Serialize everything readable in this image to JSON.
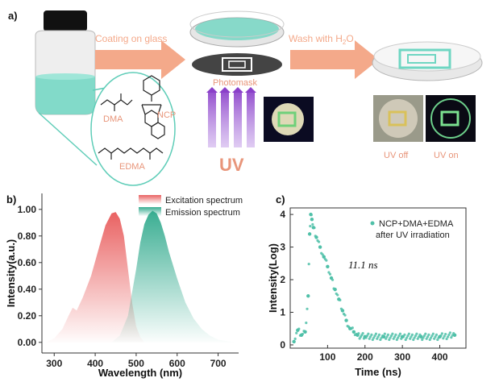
{
  "panel_a": {
    "label": "a)",
    "step1_text": "Coating on glass",
    "step2_text": "Wash with H",
    "step2_sub": "2",
    "step2_tail": "O",
    "photomask_label": "Photomask",
    "uv_label": "UV",
    "uv_off_label": "UV off",
    "uv_on_label": "UV on",
    "molecules": {
      "dma": "DMA",
      "ncp": "NCP",
      "edma": "EDMA"
    },
    "colors": {
      "arrow": "#f4a98a",
      "teal": "#5fcdb8",
      "uv": "#8a3fc9",
      "label": "#e8957a"
    }
  },
  "panel_b": {
    "label": "b)",
    "colors": {
      "excitation": "#e85a5a",
      "emission": "#2fa98c"
    },
    "chart_data": {
      "type": "area",
      "title": "",
      "xlabel": "Wavelength (nm)",
      "ylabel": "Intensity(a.u.)",
      "xlim": [
        270,
        750
      ],
      "ylim": [
        -0.08,
        1.12
      ],
      "x_ticks": [
        "300",
        "400",
        "500",
        "600",
        "700"
      ],
      "y_ticks": [
        "0.00",
        "0.20",
        "0.40",
        "0.60",
        "0.80",
        "1.00"
      ],
      "legend_position": "top-center",
      "series": [
        {
          "name": "Excitation spectrum",
          "x": [
            280,
            300,
            320,
            335,
            345,
            355,
            370,
            390,
            410,
            425,
            440,
            450,
            460,
            470,
            480,
            490,
            500,
            510,
            520
          ],
          "y": [
            0.0,
            0.03,
            0.1,
            0.2,
            0.26,
            0.24,
            0.34,
            0.5,
            0.72,
            0.88,
            0.97,
            0.98,
            0.93,
            0.8,
            0.55,
            0.3,
            0.12,
            0.04,
            0.0
          ]
        },
        {
          "name": "Emission spectrum",
          "x": [
            440,
            460,
            480,
            500,
            510,
            520,
            530,
            540,
            550,
            560,
            570,
            580,
            600,
            620,
            640,
            660,
            680,
            700,
            720,
            740
          ],
          "y": [
            0.0,
            0.05,
            0.2,
            0.55,
            0.75,
            0.89,
            0.96,
            0.99,
            0.97,
            0.9,
            0.8,
            0.68,
            0.48,
            0.3,
            0.18,
            0.1,
            0.05,
            0.02,
            0.01,
            0.0
          ]
        }
      ]
    }
  },
  "panel_c": {
    "label": "c)",
    "annotation": "11.1 ns",
    "color": "#4fc0a8",
    "chart_data": {
      "type": "scatter",
      "title": "",
      "xlabel": "Time (ns)",
      "ylabel": "Intensity(Log)",
      "xlim": [
        0,
        470
      ],
      "ylim": [
        -0.1,
        4.2
      ],
      "x_ticks": [
        "100",
        "200",
        "300",
        "400"
      ],
      "y_ticks": [
        "0",
        "1",
        "2",
        "3",
        "4"
      ],
      "legend_position": "top-right",
      "series": [
        {
          "name": "NCP+DMA+EDMA",
          "name_line2": "after UV irradiation",
          "x": [
            10,
            20,
            30,
            40,
            48,
            52,
            55,
            58,
            62,
            70,
            80,
            90,
            100,
            110,
            120,
            130,
            140,
            150,
            160,
            170,
            180,
            200,
            250,
            300,
            350,
            400,
            440
          ],
          "y": [
            0.1,
            0.45,
            0.3,
            0.4,
            1.5,
            3.4,
            4.0,
            3.85,
            3.6,
            3.3,
            3.0,
            2.7,
            2.4,
            2.05,
            1.7,
            1.4,
            1.05,
            0.75,
            0.5,
            0.4,
            0.3,
            0.25,
            0.25,
            0.25,
            0.25,
            0.25,
            0.3
          ]
        }
      ]
    }
  }
}
